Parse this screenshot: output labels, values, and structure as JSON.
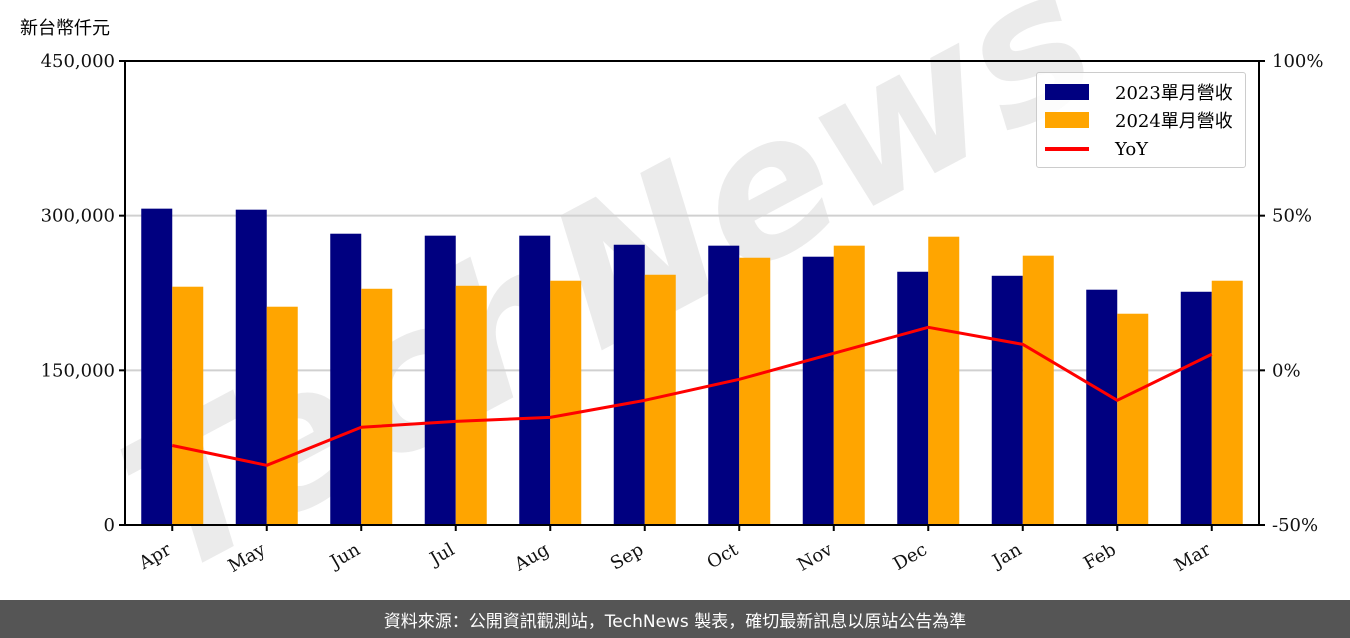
{
  "header": {
    "unit_label": "新台幣仟元"
  },
  "legend": {
    "items": [
      {
        "label": "2023單月營收",
        "color": "#000080",
        "kind": "bar"
      },
      {
        "label": "2024單月營收",
        "color": "#FFA500",
        "kind": "bar"
      },
      {
        "label": "YoY",
        "color": "#FF0000",
        "kind": "line"
      }
    ]
  },
  "watermark": {
    "text": "TechNews"
  },
  "footer": {
    "text": "資料來源：公開資訊觀測站，TechNews 製表，確切最新訊息以原站公告為準"
  },
  "colors": {
    "series_2023": "#000080",
    "series_2024": "#FFA500",
    "yoy": "#FF0000",
    "grid": "#d0d0d0",
    "footer_bg": "#555555"
  },
  "chart_data": {
    "type": "bar",
    "title": "",
    "xlabel": "",
    "ylabel": "新台幣仟元",
    "y2label": "YoY",
    "categories": [
      "Apr",
      "May",
      "Jun",
      "Jul",
      "Aug",
      "Sep",
      "Oct",
      "Nov",
      "Dec",
      "Jan",
      "Feb",
      "Mar"
    ],
    "series": [
      {
        "name": "2023單月營收",
        "type": "bar",
        "axis": "left",
        "color": "#000080",
        "values": [
          306800,
          305800,
          282500,
          280600,
          280600,
          271800,
          270900,
          260200,
          245600,
          241700,
          228200,
          226200
        ]
      },
      {
        "name": "2024單月營收",
        "type": "bar",
        "axis": "left",
        "color": "#FFA500",
        "values": [
          231100,
          211700,
          229100,
          232000,
          236900,
          242700,
          259200,
          270900,
          279600,
          261200,
          204900,
          236900
        ]
      },
      {
        "name": "YoY",
        "type": "line",
        "axis": "right",
        "color": "#FF0000",
        "unit": "%",
        "values": [
          -24.3,
          -30.7,
          -18.4,
          -16.5,
          -15.2,
          -9.7,
          -2.9,
          5.5,
          13.9,
          8.4,
          -9.7,
          5.2
        ]
      }
    ],
    "ylim": [
      0,
      450000
    ],
    "y_ticks": [
      0,
      150000,
      300000,
      450000
    ],
    "y_tick_labels": [
      "0",
      "150,000",
      "300,000",
      "450,000"
    ],
    "y2lim": [
      -50,
      100
    ],
    "y2_ticks": [
      -50,
      0,
      50,
      100
    ],
    "y2_tick_labels": [
      "-50%",
      "0%",
      "50%",
      "100%"
    ],
    "grid": "horizontal",
    "legend_position": "upper right"
  }
}
